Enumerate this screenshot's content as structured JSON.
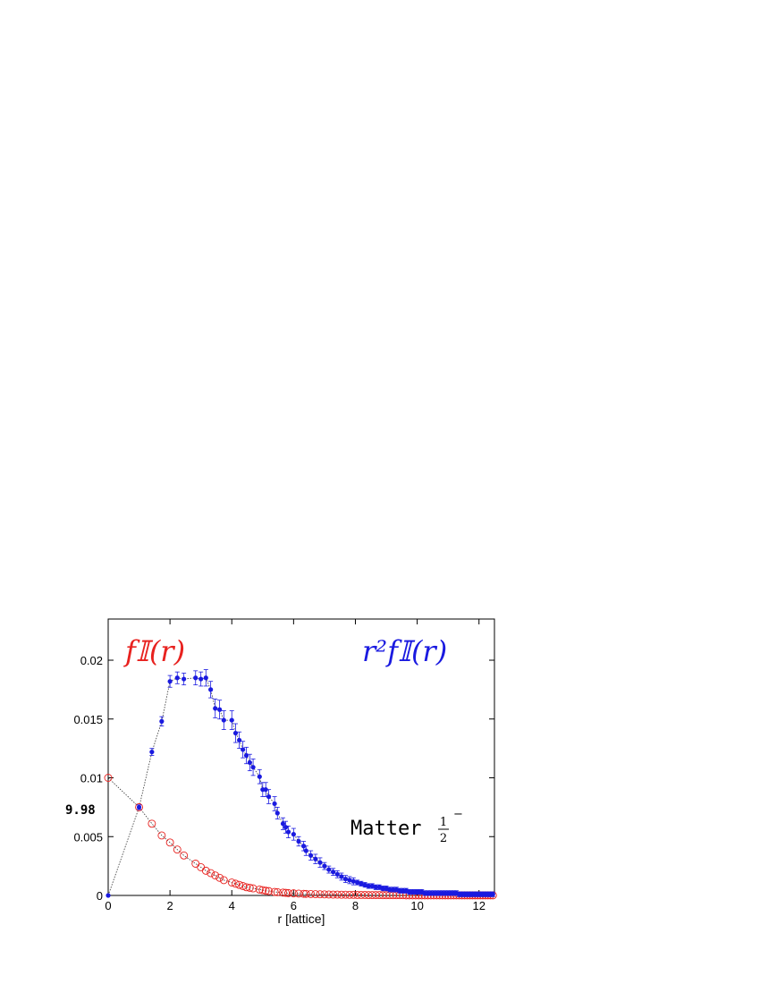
{
  "chart_data": {
    "type": "scatter",
    "title": "",
    "xlabel": "r [lattice]",
    "ylabel": "",
    "xlim": [
      0,
      12.5
    ],
    "ylim": [
      0,
      0.0235
    ],
    "x_ticks": [
      "0",
      "2",
      "4",
      "6",
      "8",
      "10",
      "12"
    ],
    "y_ticks": [
      "0",
      "0.005",
      "0.01",
      "0.015",
      "0.02"
    ],
    "grid": false,
    "annotations": {
      "red_series_label": "f𝕀(r)",
      "blue_series_label": "r²f𝕀(r)",
      "matter_text": "Matter",
      "matter_frac_num": "1",
      "matter_frac_den": "2",
      "matter_sup": "−",
      "side_label": "9.98"
    },
    "colors": {
      "red_series": "#e8221f",
      "blue_series": "#1a1ae0",
      "fit": "#333333"
    },
    "series": [
      {
        "name": "f𝕀(r)",
        "marker": "open-circle",
        "color": "#e8221f",
        "x": [
          0,
          1,
          1.414,
          1.732,
          2,
          2.236,
          2.449,
          2.828,
          3,
          3.162,
          3.317,
          3.464,
          3.606,
          3.742,
          4,
          4.123,
          4.243,
          4.359,
          4.472,
          4.583,
          4.69,
          4.899,
          5,
          5.099,
          5.196,
          5.385,
          5.477,
          5.657,
          5.745,
          5.831,
          6,
          6.164,
          6.325,
          6.403,
          6.557,
          6.708,
          6.856,
          7,
          7.141,
          7.28,
          7.416,
          7.55,
          7.681,
          7.81,
          7.937,
          8.062,
          8.185,
          8.307,
          8.426,
          8.544,
          8.66,
          8.775,
          8.888,
          9,
          9.11,
          9.22,
          9.327,
          9.434,
          9.539,
          9.644,
          9.747,
          9.849,
          9.95,
          10.05,
          10.149,
          10.247,
          10.344,
          10.44,
          10.536,
          10.63,
          10.724,
          10.817,
          10.909,
          11,
          11.09,
          11.18,
          11.269,
          11.358,
          11.446,
          11.533,
          11.619,
          11.705,
          11.79,
          11.874,
          11.958,
          12.042,
          12.124,
          12.207,
          12.288,
          12.369,
          12.45
        ],
        "y": [
          0.01,
          0.0075,
          0.0061,
          0.0051,
          0.0045,
          0.0039,
          0.0034,
          0.0027,
          0.0024,
          0.0021,
          0.0019,
          0.0017,
          0.0015,
          0.0013,
          0.0011,
          0.001,
          0.0009,
          0.0008,
          0.0007,
          0.00065,
          0.0006,
          0.0005,
          0.00045,
          0.0004,
          0.00037,
          0.0003,
          0.00028,
          0.00024,
          0.00022,
          0.0002,
          0.00018,
          0.00016,
          0.00014,
          0.00013,
          0.00012,
          0.00011,
          0.0001,
          9e-05,
          8e-05,
          7e-05,
          7e-05,
          6e-05,
          6e-05,
          5e-05,
          5e-05,
          4e-05,
          4e-05,
          4e-05,
          3e-05,
          3e-05,
          3e-05,
          3e-05,
          2e-05,
          2e-05,
          2e-05,
          2e-05,
          2e-05,
          2e-05,
          2e-05,
          1e-05,
          1e-05,
          1e-05,
          1e-05,
          1e-05,
          1e-05,
          1e-05,
          1e-05,
          1e-05,
          1e-05,
          1e-05,
          1e-05,
          1e-05,
          1e-05,
          1e-05,
          1e-05,
          1e-05,
          1e-05,
          1e-05,
          1e-05,
          1e-05,
          1e-05,
          1e-05,
          1e-05,
          1e-05,
          1e-05,
          1e-05,
          1e-05,
          1e-05,
          1e-05,
          1e-05,
          1e-05
        ]
      },
      {
        "name": "r²f𝕀(r)",
        "marker": "filled-circle",
        "color": "#1a1ae0",
        "x": [
          0,
          1,
          1.414,
          1.732,
          2,
          2.236,
          2.449,
          2.828,
          3,
          3.162,
          3.317,
          3.464,
          3.606,
          3.742,
          4,
          4.123,
          4.243,
          4.359,
          4.472,
          4.583,
          4.69,
          4.899,
          5,
          5.099,
          5.196,
          5.385,
          5.477,
          5.657,
          5.745,
          5.831,
          6,
          6.164,
          6.325,
          6.403,
          6.557,
          6.708,
          6.856,
          7,
          7.141,
          7.28,
          7.416,
          7.55,
          7.681,
          7.81,
          7.937,
          8.062,
          8.185,
          8.307,
          8.426,
          8.544,
          8.66,
          8.775,
          8.888,
          9,
          9.11,
          9.22,
          9.327,
          9.434,
          9.539,
          9.644,
          9.747,
          9.849,
          9.95,
          10.05,
          10.149,
          10.247,
          10.344,
          10.44,
          10.536,
          10.63,
          10.724,
          10.817,
          10.909,
          11,
          11.09,
          11.18,
          11.269,
          11.358,
          11.446,
          11.533,
          11.619,
          11.705,
          11.79,
          11.874,
          11.958,
          12.042,
          12.124,
          12.207,
          12.288,
          12.369,
          12.45
        ],
        "y": [
          0,
          0.0075,
          0.0122,
          0.0148,
          0.0182,
          0.0185,
          0.0184,
          0.0185,
          0.0184,
          0.0185,
          0.0175,
          0.0159,
          0.0158,
          0.0149,
          0.0149,
          0.0138,
          0.0132,
          0.0124,
          0.0119,
          0.0113,
          0.0109,
          0.0101,
          0.009,
          0.009,
          0.0084,
          0.0078,
          0.007,
          0.0061,
          0.0058,
          0.0054,
          0.0052,
          0.0046,
          0.0042,
          0.0038,
          0.0034,
          0.0031,
          0.0028,
          0.0025,
          0.0022,
          0.002,
          0.0018,
          0.0016,
          0.0014,
          0.0013,
          0.0012,
          0.0011,
          0.001,
          0.0009,
          0.0008,
          0.0008,
          0.0007,
          0.0007,
          0.0006,
          0.0006,
          0.0005,
          0.0005,
          0.0005,
          0.0004,
          0.0004,
          0.0004,
          0.0003,
          0.0003,
          0.0003,
          0.0003,
          0.0003,
          0.0002,
          0.0002,
          0.0002,
          0.0002,
          0.0002,
          0.0002,
          0.0002,
          0.0002,
          0.0002,
          0.0002,
          0.0002,
          0.0002,
          0.0001,
          0.0001,
          0.0001,
          0.0001,
          0.0001,
          0.0001,
          0.0001,
          0.0001,
          0.0001,
          0.0001,
          0.0001,
          0.0001,
          0.0001,
          0.0001
        ],
        "err": [
          0,
          0.0002,
          0.0003,
          0.0004,
          0.0005,
          0.0005,
          0.0005,
          0.0006,
          0.0006,
          0.0007,
          0.0007,
          0.0008,
          0.0008,
          0.0008,
          0.0008,
          0.0008,
          0.0007,
          0.0007,
          0.0007,
          0.0007,
          0.0007,
          0.0006,
          0.0006,
          0.0006,
          0.0006,
          0.0006,
          0.0005,
          0.0005,
          0.0005,
          0.0005,
          0.0005,
          0.0004,
          0.0004,
          0.0004,
          0.0004,
          0.0004,
          0.0004,
          0.0003,
          0.0003,
          0.0003,
          0.0003,
          0.0003,
          0.0003,
          0.0003,
          0.0003,
          0.0002,
          0.0002,
          0.0002,
          0.0002,
          0.0002,
          0.0002,
          0.0002,
          0.0002,
          0.0002,
          0.0002,
          0.0002,
          0.0002,
          0.0002,
          0.0002,
          0.0002,
          0.0002,
          0.0002,
          0.0002,
          0.0002,
          0.0002,
          0.0002,
          0.0002,
          0.0002,
          0.0002,
          0.0002,
          0.0002,
          0.0002,
          0.0002,
          0.0002,
          0.0002,
          0.0002,
          0.0002,
          0.0002,
          0.0002,
          0.0002,
          0.0002,
          0.0002,
          0.0002,
          0.0002,
          0.0002,
          0.0002,
          0.0002,
          0.0002,
          0.0002,
          0.0002,
          0.0002
        ]
      }
    ]
  }
}
